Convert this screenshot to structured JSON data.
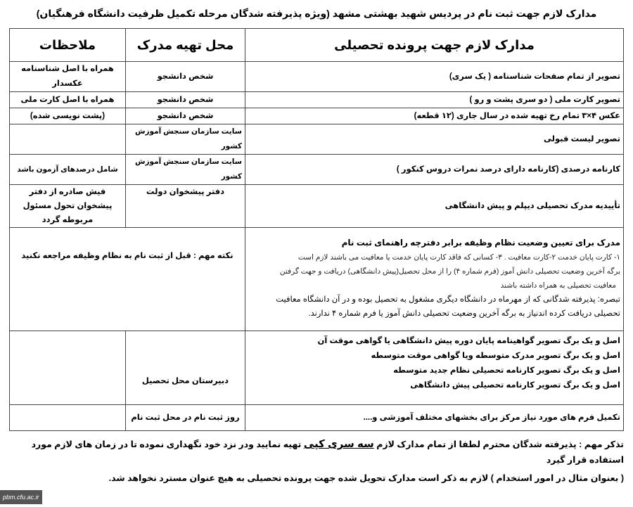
{
  "title": "مدارک لازم جهت ثبت نام در پردیس شهید بهشتی مشهد (ویژه پذیرفته شدگان مرحله تکمیل ظرفیت دانشگاه فرهنگیان)",
  "headers": {
    "documents": "مدارک لازم جهت پرونده تحصیلی",
    "source": "محل تهیه مدرک",
    "notes": "ملاحظات"
  },
  "rows": [
    {
      "doc": "تصویر از تمام صفحات شناسنامه      ( یک سری)",
      "source": "شخص دانشجو",
      "note": "همراه با اصل شناسنامه عکسدار"
    },
    {
      "doc": "تصویر کارت ملی    ( دو سری پشت و رو )",
      "source": "شخص دانشجو",
      "note": "همراه با اصل کارت ملی"
    },
    {
      "doc": "عکس ۴×۳ تمام رخ تهیه شده در سال جاری  (۱۲ قطعه)",
      "source": "شخص دانشجو",
      "note": "(پشت نویسی شده)"
    },
    {
      "doc": "تصویر لیست قبولی",
      "source": "سایت سازمان سنجش آموزش کشور",
      "note": ""
    },
    {
      "doc": "کارنامه درصدی  (کارنامه دارای درصد نمرات دروس کنکور )",
      "source": "سایت سازمان سنجش آموزش کشور",
      "note": "شامل درصدهای آزمون باشد"
    },
    {
      "doc": "تأییدیه مدرک تحصیلی دیپلم و پیش دانشگاهی",
      "source": "دفتر پیشخوان دولت",
      "note": "فیش صادره از دفتر پیشخوان تحول مسئول مربوطه گردد"
    }
  ],
  "military": {
    "heading": "مدرک برای تعیین وضعیت نظام وظیفه برابر دفترچه راهنمای ثبت نام",
    "line1": "۱- کارت پایان خدمت  ۲-کارت معافیت . ۳-  کسانی که فاقد کارت پایان خدمت یا معافیت می باشند لازم است",
    "line2": "برگه آخرین وضعیت تحصیلی دانش آموز (فرم شماره ۴)  را از محل تحصیل(پیش دانشگاهی) دریافت و جهت گرفتن",
    "line3": "معافیت تحصیلی به همراه داشته باشند",
    "note": "تبصره: پذیرفته شدگانی که از مهرماه در دانشگاه دیگری مشغول به تحصیل بوده و در آن دانشگاه معافیت تحصیلی دریافت کرده اندنیاز به برگه آخرین وضعیت تحصیلی دانش آموز یا فرم شماره ۴ ندارند.",
    "important": "نکته مهم : قبل از ثبت نام به نظام وظیفه مراجعه نکنید"
  },
  "originals": {
    "items": [
      "اصل و یک برگ تصویر گواهینامه پایان دوره پیش دانشگاهی یا گواهی  موقت آن",
      "اصل و یک برگ تصویر  مدرک  متوسطه ویا گواهی موقت متوسطه",
      "اصل و یک برگ تصویر کارنامه تحصیلی نظام جدید متوسطه",
      "اصل و یک برگ تصویر کارنامه تحصیلی پیش دانشگاهی"
    ],
    "source": "دبیرستان محل تحصیل"
  },
  "forms": {
    "doc": "تکمیل فرم های مورد نیاز مرکز برای بخشهای مختلف آموزشی و....",
    "source": "روز ثبت نام در محل ثبت نام"
  },
  "footer": {
    "part1": "تذکر مهم : پذیرفته شدگان محترم لطفا از تمام مدارک لازم ",
    "emphasis": "سه سری کپی",
    "part2": " تهیه نمایید ودر نزد خود نگهداری نموده تا در  زمان های لازم  مورد استفاده قرار گیرد",
    "line2": "( بعنوان مثال در امور استخدام ) لازم به ذکر است مدارک تحویل شده  جهت پرونده تحصیلی به هیچ عنوان  مسترد نخواهد شد."
  },
  "watermark": "pbm.cfu.ac.ir"
}
